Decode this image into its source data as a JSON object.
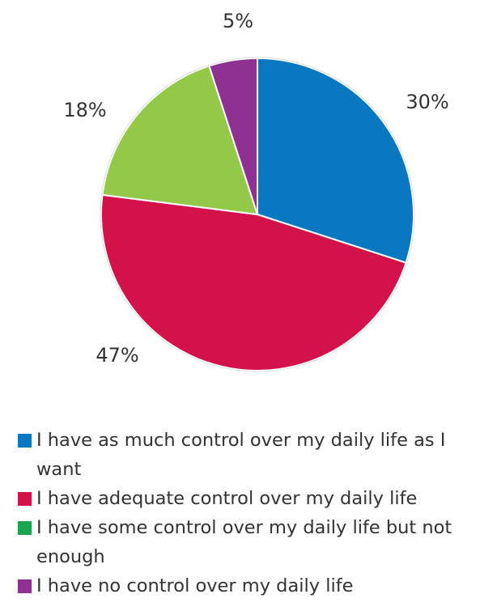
{
  "chart_data": {
    "type": "pie",
    "categories": [
      "I have as much control over my daily life as I want",
      "I have adequate control over my daily life",
      "I have some control over my daily life but not enough",
      "I have no control over my daily life"
    ],
    "values": [
      30,
      47,
      18,
      5
    ],
    "value_labels": [
      "30%",
      "47%",
      "18%",
      "5%"
    ],
    "colors": [
      "#0a77c1",
      "#d3124a",
      "#93c849",
      "#8e3192"
    ],
    "legend_colors": [
      "#0a77c1",
      "#d3124a",
      "#1aa64f",
      "#8e3192"
    ]
  }
}
